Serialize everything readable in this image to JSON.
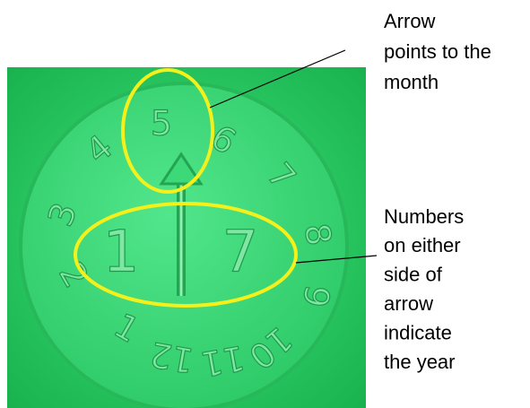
{
  "annotations": {
    "month_note": [
      "Arrow",
      "points to the",
      "month"
    ],
    "year_note": [
      "Numbers",
      "on either",
      "side of",
      "arrow",
      "indicate",
      "the year"
    ]
  },
  "dial": {
    "months": [
      "1",
      "2",
      "3",
      "4",
      "5",
      "6",
      "7",
      "8",
      "9",
      "10",
      "11",
      "12"
    ],
    "year_digits": [
      "1",
      "7"
    ]
  }
}
